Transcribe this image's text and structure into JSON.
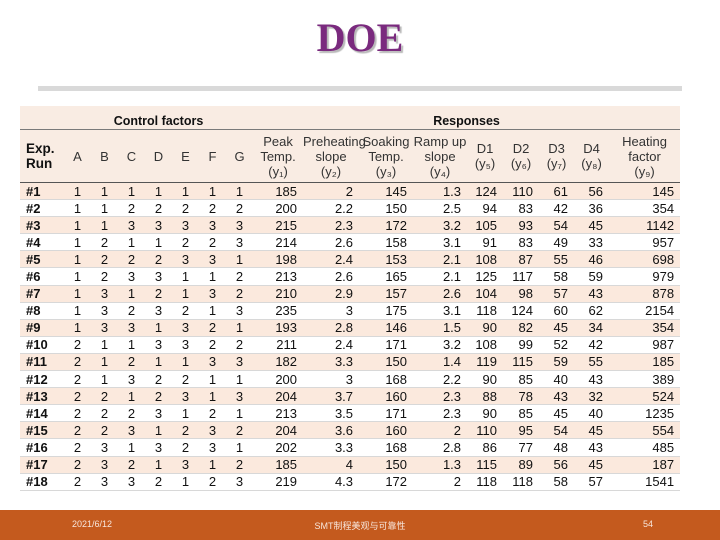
{
  "slide": {
    "title": "DOE"
  },
  "table": {
    "group_headers": {
      "control": "Control factors",
      "responses": "Responses"
    },
    "column_headers": [
      [
        "Exp.",
        "Run"
      ],
      [
        "A"
      ],
      [
        "B"
      ],
      [
        "C"
      ],
      [
        "D"
      ],
      [
        "E"
      ],
      [
        "F"
      ],
      [
        "G"
      ],
      [
        "Peak",
        "Temp.",
        "(y₁)"
      ],
      [
        "Preheating",
        "slope",
        "(y₂)"
      ],
      [
        "Soaking",
        "Temp.",
        "(y₃)"
      ],
      [
        "Ramp up",
        "slope",
        "(y₄)"
      ],
      [
        "D1",
        "(y₅)"
      ],
      [
        "D2",
        "(y₆)"
      ],
      [
        "D3",
        "(y₇)"
      ],
      [
        "D4",
        "(y₈)"
      ],
      [
        "Heating",
        "factor",
        "(y₉)"
      ]
    ],
    "rows": [
      [
        "#1",
        "1",
        "1",
        "1",
        "1",
        "1",
        "1",
        "1",
        "185",
        "2",
        "145",
        "1.3",
        "124",
        "110",
        "61",
        "56",
        "145"
      ],
      [
        "#2",
        "1",
        "1",
        "2",
        "2",
        "2",
        "2",
        "2",
        "200",
        "2.2",
        "150",
        "2.5",
        "94",
        "83",
        "42",
        "36",
        "354"
      ],
      [
        "#3",
        "1",
        "1",
        "3",
        "3",
        "3",
        "3",
        "3",
        "215",
        "2.3",
        "172",
        "3.2",
        "105",
        "93",
        "54",
        "45",
        "1142"
      ],
      [
        "#4",
        "1",
        "2",
        "1",
        "1",
        "2",
        "2",
        "3",
        "214",
        "2.6",
        "158",
        "3.1",
        "91",
        "83",
        "49",
        "33",
        "957"
      ],
      [
        "#5",
        "1",
        "2",
        "2",
        "2",
        "3",
        "3",
        "1",
        "198",
        "2.4",
        "153",
        "2.1",
        "108",
        "87",
        "55",
        "46",
        "698"
      ],
      [
        "#6",
        "1",
        "2",
        "3",
        "3",
        "1",
        "1",
        "2",
        "213",
        "2.6",
        "165",
        "2.1",
        "125",
        "117",
        "58",
        "59",
        "979"
      ],
      [
        "#7",
        "1",
        "3",
        "1",
        "2",
        "1",
        "3",
        "2",
        "210",
        "2.9",
        "157",
        "2.6",
        "104",
        "98",
        "57",
        "43",
        "878"
      ],
      [
        "#8",
        "1",
        "3",
        "2",
        "3",
        "2",
        "1",
        "3",
        "235",
        "3",
        "175",
        "3.1",
        "118",
        "124",
        "60",
        "62",
        "2154"
      ],
      [
        "#9",
        "1",
        "3",
        "3",
        "1",
        "3",
        "2",
        "1",
        "193",
        "2.8",
        "146",
        "1.5",
        "90",
        "82",
        "45",
        "34",
        "354"
      ],
      [
        "#10",
        "2",
        "1",
        "1",
        "3",
        "3",
        "2",
        "2",
        "211",
        "2.4",
        "171",
        "3.2",
        "108",
        "99",
        "52",
        "42",
        "987"
      ],
      [
        "#11",
        "2",
        "1",
        "2",
        "1",
        "1",
        "3",
        "3",
        "182",
        "3.3",
        "150",
        "1.4",
        "119",
        "115",
        "59",
        "55",
        "185"
      ],
      [
        "#12",
        "2",
        "1",
        "3",
        "2",
        "2",
        "1",
        "1",
        "200",
        "3",
        "168",
        "2.2",
        "90",
        "85",
        "40",
        "43",
        "389"
      ],
      [
        "#13",
        "2",
        "2",
        "1",
        "2",
        "3",
        "1",
        "3",
        "204",
        "3.7",
        "160",
        "2.3",
        "88",
        "78",
        "43",
        "32",
        "524"
      ],
      [
        "#14",
        "2",
        "2",
        "2",
        "3",
        "1",
        "2",
        "1",
        "213",
        "3.5",
        "171",
        "2.3",
        "90",
        "85",
        "45",
        "40",
        "1235"
      ],
      [
        "#15",
        "2",
        "2",
        "3",
        "1",
        "2",
        "3",
        "2",
        "204",
        "3.6",
        "160",
        "2",
        "110",
        "95",
        "54",
        "45",
        "554"
      ],
      [
        "#16",
        "2",
        "3",
        "1",
        "3",
        "2",
        "3",
        "1",
        "202",
        "3.3",
        "168",
        "2.8",
        "86",
        "77",
        "48",
        "43",
        "485"
      ],
      [
        "#17",
        "2",
        "3",
        "2",
        "1",
        "3",
        "1",
        "2",
        "185",
        "4",
        "150",
        "1.3",
        "115",
        "89",
        "56",
        "45",
        "187"
      ],
      [
        "#18",
        "2",
        "3",
        "3",
        "2",
        "1",
        "2",
        "3",
        "219",
        "4.3",
        "172",
        "2",
        "118",
        "118",
        "58",
        "57",
        "1541"
      ]
    ]
  },
  "footer": {
    "date": "2021/6/12",
    "center": "SMT制程美观与可靠性",
    "page": "54"
  }
}
